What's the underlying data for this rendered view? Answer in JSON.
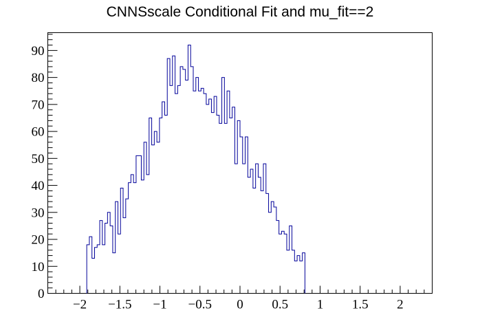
{
  "chart_data": {
    "type": "bar",
    "style": "step-histogram",
    "title": "CNNSscale Conditional Fit and mu_fit==2",
    "xlabel": "",
    "ylabel": "",
    "xlim": [
      -2.4,
      2.4
    ],
    "ylim": [
      0,
      96.6
    ],
    "x_ticks": [
      -2,
      -1.5,
      -1,
      -0.5,
      0,
      0.5,
      1,
      1.5,
      2
    ],
    "x_tick_labels": [
      "−2",
      "−1.5",
      "−1",
      "−0.5",
      "0",
      "0.5",
      "1",
      "1.5",
      "2"
    ],
    "y_ticks": [
      0,
      10,
      20,
      30,
      40,
      50,
      60,
      70,
      80,
      90
    ],
    "y_tick_labels": [
      "0",
      "10",
      "20",
      "30",
      "40",
      "50",
      "60",
      "70",
      "80",
      "90"
    ],
    "grid": false,
    "line_color": "#000099",
    "bins": {
      "x_low": -2.4,
      "x_high": 2.4,
      "count": 144,
      "values": [
        0,
        0,
        0,
        0,
        0,
        0,
        0,
        0,
        0,
        0,
        0,
        0,
        0,
        0,
        0,
        18,
        21,
        13,
        17,
        18,
        27,
        18,
        26,
        30,
        25,
        15,
        34,
        22,
        39,
        28,
        35,
        41,
        44,
        41,
        51,
        51,
        42,
        56,
        44,
        65,
        55,
        60,
        56,
        65,
        71,
        66,
        87,
        77,
        88,
        74,
        77,
        84,
        83,
        79,
        92,
        84,
        75,
        80,
        75,
        76,
        74,
        70,
        72,
        67,
        73,
        66,
        63,
        80,
        63,
        75,
        65,
        69,
        48,
        64,
        58,
        48,
        58,
        43,
        46,
        39,
        48,
        43,
        38,
        48,
        37,
        30,
        34,
        32,
        27,
        22,
        23,
        22,
        16,
        25,
        16,
        12,
        14,
        12,
        15,
        0,
        0,
        0,
        0,
        0,
        0,
        0,
        0,
        0,
        0,
        0,
        0,
        0,
        0,
        0,
        0,
        0,
        0,
        0,
        0,
        0,
        0,
        0,
        0,
        0,
        0,
        0,
        0,
        0,
        0,
        0,
        0,
        0,
        0,
        0,
        0,
        0,
        0,
        0,
        0,
        0,
        0,
        0,
        0,
        0,
        0,
        0,
        0,
        0
      ]
    }
  }
}
